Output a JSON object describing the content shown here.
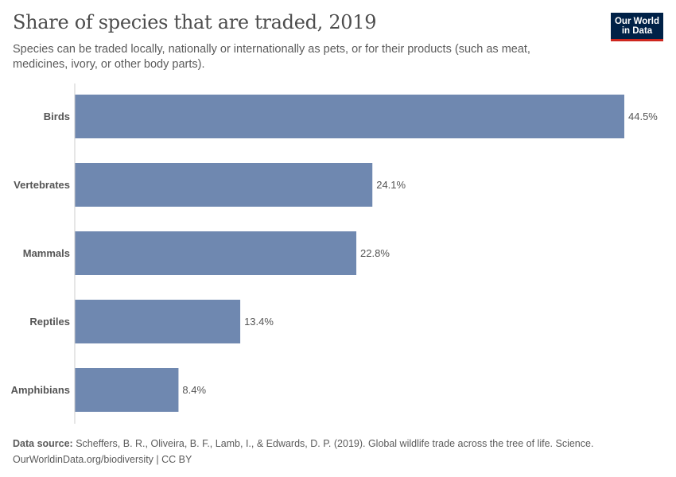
{
  "header": {
    "title": "Share of species that are traded, 2019",
    "subtitle": "Species can be traded locally, nationally or internationally as pets, or for their products (such as meat, medicines, ivory, or other body parts)."
  },
  "logo": {
    "line1": "Our World",
    "line2": "in Data",
    "bg_color": "#002147",
    "accent_color": "#ce261e"
  },
  "footer": {
    "source_label": "Data source:",
    "source_text": "Scheffers, B. R., Oliveira, B. F., Lamb, I., & Edwards, D. P. (2019). Global wildlife trade across the tree of life. Science.",
    "credit": "OurWorldinData.org/biodiversity | CC BY"
  },
  "chart_data": {
    "type": "bar",
    "orientation": "horizontal",
    "categories": [
      "Birds",
      "Vertebrates",
      "Mammals",
      "Reptiles",
      "Amphibians"
    ],
    "values": [
      44.5,
      24.1,
      22.8,
      13.4,
      8.4
    ],
    "value_labels": [
      "44.5%",
      "24.1%",
      "22.8%",
      "13.4%",
      "8.4%"
    ],
    "unit": "%",
    "xlim": [
      0,
      44.5
    ],
    "bar_color": "#6f88b0",
    "grid": false
  }
}
